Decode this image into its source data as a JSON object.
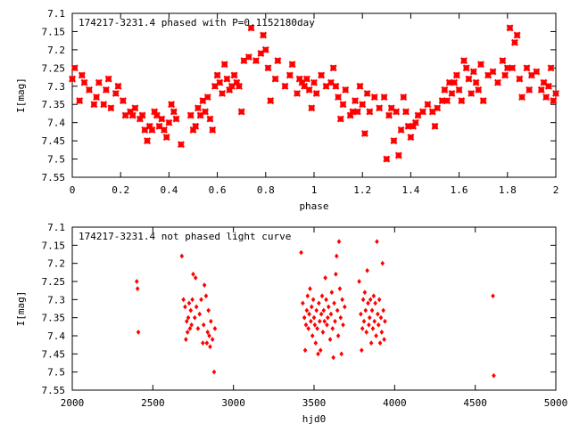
{
  "chart_data": [
    {
      "type": "scatter",
      "title": "174217-3231.4 phased with P=0.1152180day",
      "xlabel": "phase",
      "ylabel": "I[mag]",
      "xlim": [
        0,
        2
      ],
      "ylim": [
        7.55,
        7.1
      ],
      "y_inverted": true,
      "grid": false,
      "legend": "none",
      "x_ticks": [
        0,
        0.2,
        0.4,
        0.6,
        0.8,
        1,
        1.2,
        1.4,
        1.6,
        1.8,
        2
      ],
      "y_ticks": [
        7.1,
        7.15,
        7.2,
        7.25,
        7.3,
        7.35,
        7.4,
        7.45,
        7.5,
        7.55
      ],
      "x_tick_labels": [
        "0",
        "0.2",
        "0.4",
        "0.6",
        "0.8",
        "1",
        "1.2",
        "1.4",
        "1.6",
        "1.8",
        "2"
      ],
      "y_tick_labels": [
        "7.1",
        "7.15",
        "7.2",
        "7.25",
        "7.3",
        "7.35",
        "7.4",
        "7.45",
        "7.5",
        "7.55"
      ],
      "marker_color": "#ff0000",
      "points": [
        [
          0.0,
          7.28
        ],
        [
          0.01,
          7.25
        ],
        [
          0.03,
          7.34
        ],
        [
          0.04,
          7.27
        ],
        [
          0.05,
          7.29
        ],
        [
          0.07,
          7.31
        ],
        [
          0.09,
          7.35
        ],
        [
          0.1,
          7.33
        ],
        [
          0.11,
          7.29
        ],
        [
          0.13,
          7.35
        ],
        [
          0.14,
          7.31
        ],
        [
          0.15,
          7.28
        ],
        [
          0.16,
          7.36
        ],
        [
          0.18,
          7.32
        ],
        [
          0.19,
          7.3
        ],
        [
          0.21,
          7.34
        ],
        [
          0.22,
          7.38
        ],
        [
          0.24,
          7.37
        ],
        [
          0.25,
          7.38
        ],
        [
          0.26,
          7.36
        ],
        [
          0.28,
          7.39
        ],
        [
          0.29,
          7.38
        ],
        [
          0.3,
          7.42
        ],
        [
          0.31,
          7.45
        ],
        [
          0.32,
          7.41
        ],
        [
          0.33,
          7.42
        ],
        [
          0.34,
          7.37
        ],
        [
          0.35,
          7.38
        ],
        [
          0.36,
          7.41
        ],
        [
          0.37,
          7.39
        ],
        [
          0.38,
          7.42
        ],
        [
          0.39,
          7.44
        ],
        [
          0.4,
          7.4
        ],
        [
          0.41,
          7.35
        ],
        [
          0.42,
          7.37
        ],
        [
          0.43,
          7.39
        ],
        [
          0.45,
          7.46
        ],
        [
          0.49,
          7.38
        ],
        [
          0.5,
          7.42
        ],
        [
          0.51,
          7.41
        ],
        [
          0.52,
          7.36
        ],
        [
          0.53,
          7.38
        ],
        [
          0.54,
          7.34
        ],
        [
          0.55,
          7.37
        ],
        [
          0.56,
          7.33
        ],
        [
          0.57,
          7.39
        ],
        [
          0.58,
          7.42
        ],
        [
          0.59,
          7.3
        ],
        [
          0.6,
          7.27
        ],
        [
          0.61,
          7.29
        ],
        [
          0.62,
          7.32
        ],
        [
          0.63,
          7.24
        ],
        [
          0.64,
          7.28
        ],
        [
          0.65,
          7.31
        ],
        [
          0.66,
          7.3
        ],
        [
          0.67,
          7.27
        ],
        [
          0.68,
          7.29
        ],
        [
          0.69,
          7.3
        ],
        [
          0.7,
          7.37
        ],
        [
          0.71,
          7.23
        ],
        [
          0.73,
          7.22
        ],
        [
          0.74,
          7.14
        ],
        [
          0.76,
          7.23
        ],
        [
          0.78,
          7.21
        ],
        [
          0.79,
          7.16
        ],
        [
          0.8,
          7.2
        ],
        [
          0.81,
          7.25
        ],
        [
          0.82,
          7.34
        ],
        [
          0.84,
          7.28
        ],
        [
          0.85,
          7.23
        ],
        [
          0.88,
          7.3
        ],
        [
          0.9,
          7.27
        ],
        [
          0.91,
          7.24
        ],
        [
          0.93,
          7.32
        ],
        [
          0.94,
          7.28
        ],
        [
          0.95,
          7.29
        ],
        [
          0.96,
          7.3
        ],
        [
          0.97,
          7.28
        ],
        [
          0.98,
          7.31
        ],
        [
          0.99,
          7.36
        ],
        [
          1.0,
          7.29
        ],
        [
          1.01,
          7.32
        ],
        [
          1.03,
          7.27
        ],
        [
          1.05,
          7.3
        ],
        [
          1.07,
          7.29
        ],
        [
          1.08,
          7.25
        ],
        [
          1.09,
          7.3
        ],
        [
          1.1,
          7.33
        ],
        [
          1.11,
          7.39
        ],
        [
          1.12,
          7.35
        ],
        [
          1.13,
          7.31
        ],
        [
          1.15,
          7.38
        ],
        [
          1.16,
          7.37
        ],
        [
          1.17,
          7.34
        ],
        [
          1.18,
          7.37
        ],
        [
          1.19,
          7.3
        ],
        [
          1.2,
          7.35
        ],
        [
          1.21,
          7.43
        ],
        [
          1.22,
          7.32
        ],
        [
          1.23,
          7.37
        ],
        [
          1.25,
          7.33
        ],
        [
          1.27,
          7.36
        ],
        [
          1.29,
          7.33
        ],
        [
          1.3,
          7.5
        ],
        [
          1.31,
          7.38
        ],
        [
          1.32,
          7.36
        ],
        [
          1.33,
          7.45
        ],
        [
          1.34,
          7.37
        ],
        [
          1.35,
          7.49
        ],
        [
          1.36,
          7.42
        ],
        [
          1.37,
          7.33
        ],
        [
          1.38,
          7.37
        ],
        [
          1.39,
          7.41
        ],
        [
          1.4,
          7.44
        ],
        [
          1.41,
          7.41
        ],
        [
          1.42,
          7.4
        ],
        [
          1.43,
          7.38
        ],
        [
          1.45,
          7.37
        ],
        [
          1.47,
          7.35
        ],
        [
          1.49,
          7.37
        ],
        [
          1.5,
          7.41
        ],
        [
          1.51,
          7.36
        ],
        [
          1.53,
          7.34
        ],
        [
          1.54,
          7.31
        ],
        [
          1.55,
          7.34
        ],
        [
          1.56,
          7.29
        ],
        [
          1.57,
          7.32
        ],
        [
          1.58,
          7.29
        ],
        [
          1.59,
          7.27
        ],
        [
          1.6,
          7.31
        ],
        [
          1.61,
          7.34
        ],
        [
          1.62,
          7.23
        ],
        [
          1.63,
          7.25
        ],
        [
          1.64,
          7.28
        ],
        [
          1.65,
          7.32
        ],
        [
          1.66,
          7.26
        ],
        [
          1.67,
          7.29
        ],
        [
          1.68,
          7.31
        ],
        [
          1.69,
          7.24
        ],
        [
          1.7,
          7.34
        ],
        [
          1.72,
          7.27
        ],
        [
          1.74,
          7.26
        ],
        [
          1.76,
          7.29
        ],
        [
          1.78,
          7.23
        ],
        [
          1.79,
          7.27
        ],
        [
          1.8,
          7.25
        ],
        [
          1.81,
          7.14
        ],
        [
          1.82,
          7.25
        ],
        [
          1.83,
          7.18
        ],
        [
          1.84,
          7.16
        ],
        [
          1.85,
          7.28
        ],
        [
          1.86,
          7.33
        ],
        [
          1.88,
          7.25
        ],
        [
          1.89,
          7.31
        ],
        [
          1.9,
          7.27
        ],
        [
          1.92,
          7.26
        ],
        [
          1.94,
          7.31
        ],
        [
          1.95,
          7.29
        ],
        [
          1.96,
          7.33
        ],
        [
          1.97,
          7.3
        ],
        [
          1.98,
          7.25
        ],
        [
          1.99,
          7.34
        ],
        [
          2.0,
          7.32
        ]
      ]
    },
    {
      "type": "scatter",
      "title": "174217-3231.4 not phased light curve",
      "xlabel": "hjd0",
      "ylabel": "I[mag]",
      "xlim": [
        2000,
        5000
      ],
      "ylim": [
        7.55,
        7.1
      ],
      "y_inverted": true,
      "grid": false,
      "legend": "none",
      "x_ticks": [
        2000,
        2500,
        3000,
        3500,
        4000,
        4500,
        5000
      ],
      "y_ticks": [
        7.1,
        7.15,
        7.2,
        7.25,
        7.3,
        7.35,
        7.4,
        7.45,
        7.5,
        7.55
      ],
      "x_tick_labels": [
        "2000",
        "2500",
        "3000",
        "3500",
        "4000",
        "4500",
        "5000"
      ],
      "y_tick_labels": [
        "7.1",
        "7.15",
        "7.2",
        "7.25",
        "7.3",
        "7.35",
        "7.4",
        "7.45",
        "7.5",
        "7.55"
      ],
      "marker_color": "#ff0000",
      "points": [
        [
          2400,
          7.25
        ],
        [
          2405,
          7.27
        ],
        [
          2410,
          7.39
        ],
        [
          2680,
          7.18
        ],
        [
          2690,
          7.3
        ],
        [
          2700,
          7.32
        ],
        [
          2705,
          7.41
        ],
        [
          2710,
          7.36
        ],
        [
          2715,
          7.39
        ],
        [
          2720,
          7.35
        ],
        [
          2725,
          7.31
        ],
        [
          2730,
          7.38
        ],
        [
          2735,
          7.33
        ],
        [
          2740,
          7.37
        ],
        [
          2745,
          7.3
        ],
        [
          2750,
          7.23
        ],
        [
          2760,
          7.35
        ],
        [
          2765,
          7.24
        ],
        [
          2770,
          7.32
        ],
        [
          2780,
          7.38
        ],
        [
          2790,
          7.34
        ],
        [
          2800,
          7.3
        ],
        [
          2810,
          7.42
        ],
        [
          2815,
          7.37
        ],
        [
          2820,
          7.26
        ],
        [
          2830,
          7.29
        ],
        [
          2835,
          7.42
        ],
        [
          2840,
          7.39
        ],
        [
          2845,
          7.33
        ],
        [
          2850,
          7.4
        ],
        [
          2855,
          7.43
        ],
        [
          2860,
          7.36
        ],
        [
          2870,
          7.41
        ],
        [
          2880,
          7.5
        ],
        [
          2885,
          7.38
        ],
        [
          3420,
          7.17
        ],
        [
          3430,
          7.31
        ],
        [
          3440,
          7.35
        ],
        [
          3445,
          7.44
        ],
        [
          3450,
          7.37
        ],
        [
          3455,
          7.33
        ],
        [
          3460,
          7.29
        ],
        [
          3465,
          7.38
        ],
        [
          3470,
          7.34
        ],
        [
          3475,
          7.27
        ],
        [
          3480,
          7.36
        ],
        [
          3485,
          7.32
        ],
        [
          3490,
          7.4
        ],
        [
          3495,
          7.3
        ],
        [
          3500,
          7.35
        ],
        [
          3505,
          7.37
        ],
        [
          3510,
          7.42
        ],
        [
          3515,
          7.33
        ],
        [
          3520,
          7.38
        ],
        [
          3525,
          7.45
        ],
        [
          3530,
          7.31
        ],
        [
          3535,
          7.36
        ],
        [
          3540,
          7.44
        ],
        [
          3545,
          7.34
        ],
        [
          3550,
          7.29
        ],
        [
          3555,
          7.39
        ],
        [
          3560,
          7.33
        ],
        [
          3565,
          7.36
        ],
        [
          3570,
          7.24
        ],
        [
          3575,
          7.3
        ],
        [
          3580,
          7.37
        ],
        [
          3585,
          7.35
        ],
        [
          3590,
          7.32
        ],
        [
          3600,
          7.41
        ],
        [
          3605,
          7.34
        ],
        [
          3610,
          7.28
        ],
        [
          3615,
          7.38
        ],
        [
          3620,
          7.46
        ],
        [
          3625,
          7.31
        ],
        [
          3630,
          7.36
        ],
        [
          3635,
          7.23
        ],
        [
          3640,
          7.18
        ],
        [
          3645,
          7.33
        ],
        [
          3650,
          7.4
        ],
        [
          3655,
          7.14
        ],
        [
          3660,
          7.27
        ],
        [
          3665,
          7.35
        ],
        [
          3670,
          7.45
        ],
        [
          3675,
          7.3
        ],
        [
          3680,
          7.37
        ],
        [
          3690,
          7.32
        ],
        [
          3780,
          7.25
        ],
        [
          3790,
          7.34
        ],
        [
          3795,
          7.44
        ],
        [
          3800,
          7.38
        ],
        [
          3805,
          7.3
        ],
        [
          3810,
          7.36
        ],
        [
          3815,
          7.28
        ],
        [
          3820,
          7.33
        ],
        [
          3825,
          7.39
        ],
        [
          3830,
          7.22
        ],
        [
          3835,
          7.31
        ],
        [
          3840,
          7.37
        ],
        [
          3845,
          7.35
        ],
        [
          3850,
          7.3
        ],
        [
          3855,
          7.42
        ],
        [
          3860,
          7.33
        ],
        [
          3865,
          7.38
        ],
        [
          3870,
          7.29
        ],
        [
          3875,
          7.36
        ],
        [
          3880,
          7.31
        ],
        [
          3885,
          7.4
        ],
        [
          3890,
          7.14
        ],
        [
          3895,
          7.34
        ],
        [
          3900,
          7.37
        ],
        [
          3905,
          7.3
        ],
        [
          3910,
          7.42
        ],
        [
          3915,
          7.35
        ],
        [
          3920,
          7.39
        ],
        [
          3925,
          7.2
        ],
        [
          3930,
          7.33
        ],
        [
          3935,
          7.41
        ],
        [
          3940,
          7.36
        ],
        [
          4610,
          7.29
        ],
        [
          4615,
          7.51
        ]
      ]
    }
  ]
}
